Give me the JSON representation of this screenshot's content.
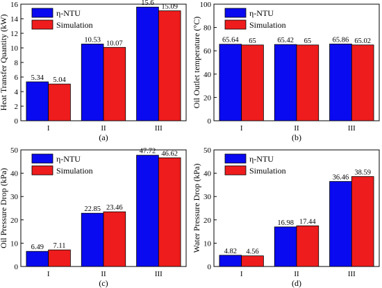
{
  "series_names": [
    "η-NTU",
    "Simulation"
  ],
  "colors": {
    "series_a": "#0a0af0",
    "series_b": "#ee1c1c"
  },
  "chart_data": [
    {
      "type": "bar",
      "panel_label": "(a)",
      "ylabel": "Heat Transfer Quantity (kW)",
      "categories": [
        "I",
        "II",
        "III"
      ],
      "ylim": [
        0,
        16
      ],
      "yticks": [
        0,
        2,
        4,
        6,
        8,
        10,
        12,
        14,
        16
      ],
      "legend": "top-left",
      "series": [
        {
          "name": "η-NTU",
          "values": [
            5.34,
            10.53,
            15.6
          ],
          "labels": [
            "5.34",
            "10.53",
            "15.6"
          ]
        },
        {
          "name": "Simulation",
          "values": [
            5.04,
            10.07,
            15.09
          ],
          "labels": [
            "5.04",
            "10.07",
            "15.09"
          ]
        }
      ]
    },
    {
      "type": "bar",
      "panel_label": "(b)",
      "ylabel": "Oil Outlet temperature (°C)",
      "categories": [
        "I",
        "II",
        "III"
      ],
      "ylim": [
        0,
        100
      ],
      "yticks": [
        0,
        20,
        40,
        60,
        80,
        100
      ],
      "legend": "top-left",
      "series": [
        {
          "name": "η-NTU",
          "values": [
            65.64,
            65.42,
            65.86
          ],
          "labels": [
            "65.64",
            "65.42",
            "65.86"
          ]
        },
        {
          "name": "Simulation",
          "values": [
            65,
            65,
            65.02
          ],
          "labels": [
            "65",
            "65",
            "65.02"
          ]
        }
      ]
    },
    {
      "type": "bar",
      "panel_label": "(c)",
      "ylabel": "Oil Pressure Drop (kPa)",
      "categories": [
        "I",
        "II",
        "III"
      ],
      "ylim": [
        0,
        50
      ],
      "yticks": [
        0,
        10,
        20,
        30,
        40,
        50
      ],
      "legend": "top-left",
      "series": [
        {
          "name": "η-NTU",
          "values": [
            6.49,
            22.85,
            47.72
          ],
          "labels": [
            "6.49",
            "22.85",
            "47.72"
          ]
        },
        {
          "name": "Simulation",
          "values": [
            7.11,
            23.46,
            46.62
          ],
          "labels": [
            "7.11",
            "23.46",
            "46.62"
          ]
        }
      ]
    },
    {
      "type": "bar",
      "panel_label": "(d)",
      "ylabel": "Water Pressure Drop (kPa)",
      "categories": [
        "I",
        "II",
        "III"
      ],
      "ylim": [
        0,
        50
      ],
      "yticks": [
        0,
        10,
        20,
        30,
        40,
        50
      ],
      "legend": "top-left",
      "series": [
        {
          "name": "η-NTU",
          "values": [
            4.82,
            16.98,
            36.46
          ],
          "labels": [
            "4.82",
            "16.98",
            "36.46"
          ]
        },
        {
          "name": "Simulation",
          "values": [
            4.56,
            17.44,
            38.59
          ],
          "labels": [
            "4.56",
            "17.44",
            "38.59"
          ]
        }
      ]
    }
  ]
}
